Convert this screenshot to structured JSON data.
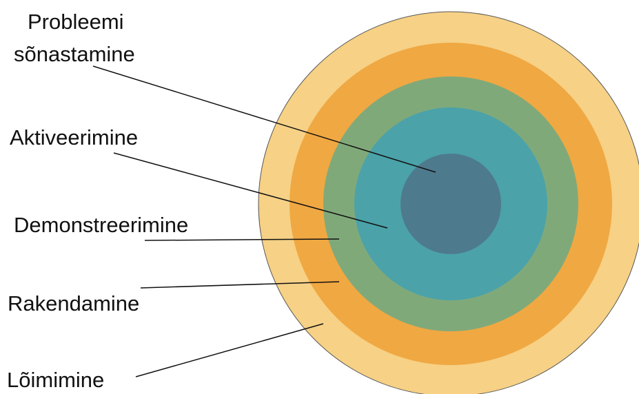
{
  "diagram": {
    "labels": {
      "problem_line1": "Probleemi",
      "problem_line2": "sõnastamine",
      "activation": "Aktiveerimine",
      "demonstration": "Demonstreerimine",
      "application": "Rakendamine",
      "integration": "Lõimimine"
    },
    "rings": [
      {
        "name": "outer-light-ring",
        "color": "#F6D186"
      },
      {
        "name": "orange-ring",
        "color": "#F0A842"
      },
      {
        "name": "green-ring",
        "color": "#80A97A"
      },
      {
        "name": "teal-ring",
        "color": "#4BA2A9"
      },
      {
        "name": "core-circle",
        "color": "#4E7A8E"
      }
    ],
    "leader_line_color": "#111111"
  }
}
